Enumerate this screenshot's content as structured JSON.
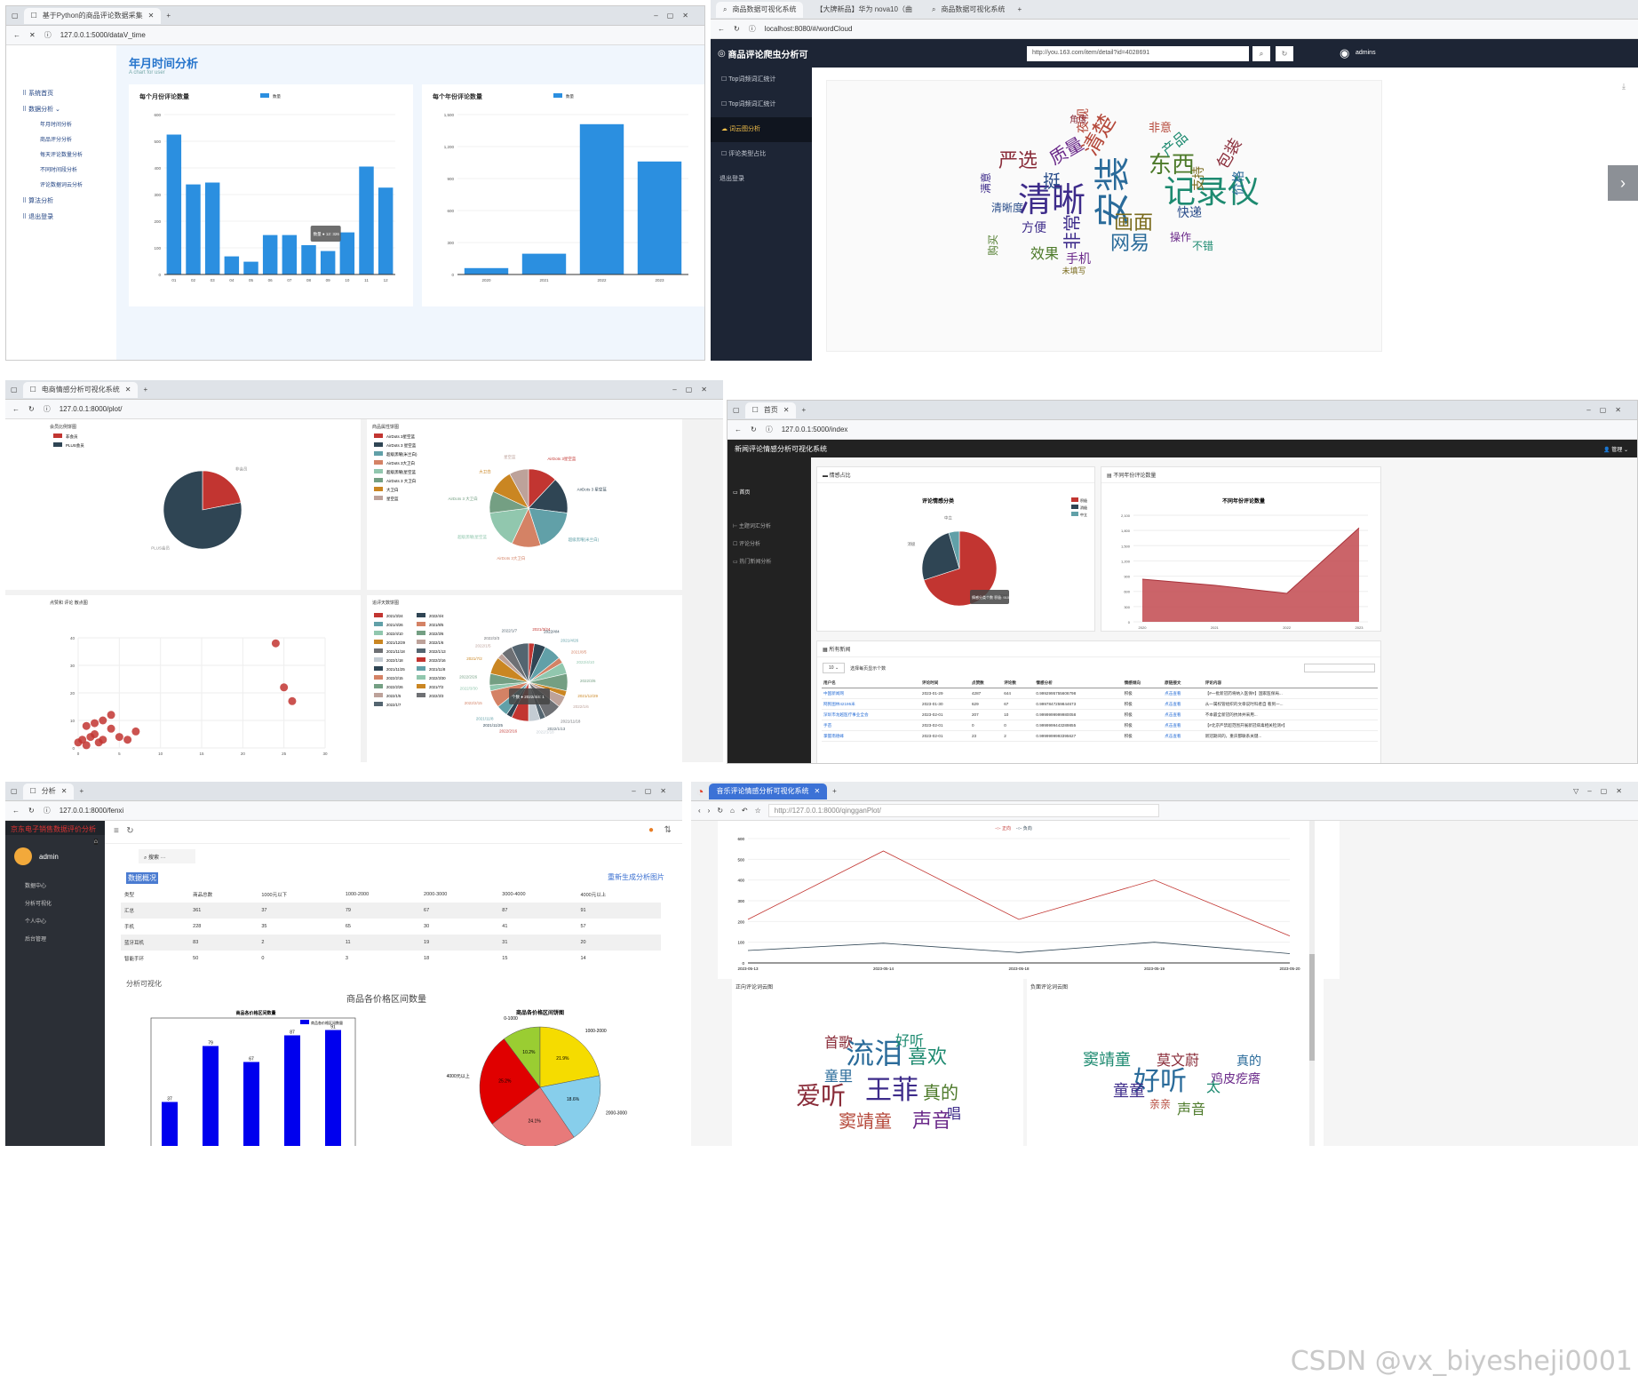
{
  "p1": {
    "tab": "基于Python的商品评论数据采集",
    "url": "127.0.0.1:5000/dataV_time",
    "menu": [
      "系统首页",
      "数据分析",
      "年月时间分析",
      "商品评分分析",
      "每天评论数量分析",
      "不同时间段分析",
      "评论数据词云分析",
      "算法分析",
      "退出登录"
    ],
    "title": "年月时间分析",
    "subtitle": "A chart for user",
    "chart1_title": "每个月份评论数量",
    "chart2_title": "每个年份评论数量",
    "legend": "数量",
    "tooltip": "数量 ● 12: 326",
    "chart_data": [
      {
        "type": "bar",
        "title": "每个月份评论数量",
        "categories": [
          "01",
          "02",
          "03",
          "04",
          "05",
          "06",
          "07",
          "08",
          "09",
          "10",
          "11",
          "12"
        ],
        "values": [
          525,
          338,
          345,
          68,
          48,
          148,
          148,
          110,
          88,
          158,
          405,
          326
        ],
        "ylim": [
          0,
          600
        ],
        "yticks": [
          "0",
          "100",
          "200",
          "300",
          "400",
          "500",
          "600"
        ]
      },
      {
        "type": "bar",
        "title": "每个年份评论数量",
        "categories": [
          "2020",
          "2021",
          "2022",
          "2023"
        ],
        "values": [
          60,
          195,
          1410,
          1060
        ],
        "ylim": [
          0,
          1500
        ],
        "yticks": [
          "0",
          "300",
          "600",
          "900",
          "1,200",
          "1,500"
        ]
      }
    ]
  },
  "p2": {
    "tabs": [
      "商品数据可视化系统",
      "【大牌新品】华为 nova10（曲",
      "商品数据可视化系统"
    ],
    "url": "localhost:8080/#/wordCloud",
    "title": "商品评论爬虫分析可",
    "search_value": "http://you.163.com/item/detail?id=4028691",
    "user": "admins",
    "menu": [
      "Top词频词汇统计",
      "Top词频词汇统计",
      "词云图分析",
      "评论类型占比",
      "退出登录"
    ],
    "words": [
      "清晰",
      "安装",
      "记录仪",
      "严选",
      "东西",
      "质量",
      "清楚",
      "挺",
      "画面",
      "非常",
      "网易",
      "产品",
      "包装",
      "效果",
      "手机",
      "夜视",
      "快递",
      "支持",
      "方便",
      "价格",
      "不错",
      "角度",
      "购买",
      "操作",
      "非意",
      "清晰度",
      "未填写",
      "满意"
    ]
  },
  "p3": {
    "tab": "电商情感分析可视化系统",
    "url": "127.0.0.1:8000/plot/",
    "c1_title": "会员比例饼图",
    "c1_legend": [
      "非会员",
      "PLUS会员"
    ],
    "c2_title": "商品属性饼图",
    "c2_legend": [
      "AirDots 3星空蓝",
      "AirDots 3 星空蓝",
      "超级黑曜(米兰白)",
      "AirDots 3大卫白",
      "超级黑曜(星空蓝",
      "AirDots 3 大卫白",
      "大卫白",
      "星空蓝"
    ],
    "c3_title": "点赞和 评论 散点图",
    "c4_title": "追评天数饼图",
    "c4_legend": [
      "2021/3/24",
      "2022/4/4",
      "2021/4/26",
      "2021/8/5",
      "2022/4/10",
      "2022/3/6",
      "2021/12/29",
      "2022/1/6",
      "2021/11/18",
      "2022/1/13",
      "2022/1/18",
      "2022/2/16",
      "2021/11/25",
      "2021/11/8",
      "2022/2/15",
      "2022/3/30",
      "2022/2/26",
      "2021/7/2",
      "2022/1/5",
      "2022/3/3",
      "2022/1/7"
    ],
    "tooltip": "个数 ● 2022/4/4: 1",
    "chart_data": [
      {
        "type": "pie",
        "title": "会员比例饼图",
        "labels": [
          "非会员",
          "PLUS会员"
        ],
        "values": [
          22,
          78
        ]
      },
      {
        "type": "scatter",
        "title": "点赞和 评论 散点图",
        "xlim": [
          0,
          30
        ],
        "ylim": [
          0,
          40
        ],
        "x": [
          0,
          0.5,
          1,
          1.5,
          2,
          2.5,
          3,
          4,
          5,
          3,
          4,
          2,
          1,
          24,
          25,
          26,
          6,
          7
        ],
        "y": [
          2,
          3,
          1,
          4,
          5,
          2,
          3,
          7,
          4,
          10,
          12,
          9,
          8,
          38,
          22,
          17,
          3,
          6
        ]
      }
    ]
  },
  "p4": {
    "tab": "首页",
    "url": "127.0.0.1:5000/index",
    "title": "新闻评论情感分析可视化系统",
    "user": "管理",
    "menu": [
      "首页",
      "主题词汇分析",
      "评论分析",
      "热门新闻分析"
    ],
    "card1": "情感占比",
    "card2": "不同年份评论数量",
    "pie_title": "评论情感分类",
    "pie_legend": [
      "积极",
      "消极",
      "中立"
    ],
    "pie_tooltip": "情感分类个数 积极: 910",
    "area_title": "不同年份评论数量",
    "table_title": "所有新闻",
    "page_size": "10",
    "page_label": "选择每页显示个数",
    "columns": [
      "用户名",
      "评论时间",
      "点赞数",
      "评论数",
      "情感分析",
      "情感倾向",
      "原链接文",
      "评论内容"
    ],
    "rows": [
      [
        "中国新闻网",
        "2023-01-29",
        "4287",
        "644",
        "0.9992995755606798",
        "积极",
        "点击查看",
        "【#一批新冠药将纳入医保#】国家医保局..."
      ],
      [
        "网民图林42195米",
        "2023-01-30",
        "629",
        "67",
        "0.9997847259844673",
        "积极",
        "点击查看",
        "从一属权管组织的文章说时科者自 看到一..."
      ],
      [
        "深圳市龙越医疗事业全会",
        "2023-02-01",
        "207",
        "10",
        "0.9999999999980058",
        "积极",
        "点击查看",
        "不本最全新冠的抗体并采用..."
      ],
      [
        "手苗",
        "2023-02-01",
        "0",
        "0",
        "0.9999999443289855",
        "积极",
        "点击查看",
        "【#北京严禁超范围开展新冠病毒相关检测#】"
      ],
      [
        "掌握南德峰",
        "2023-02-01",
        "23",
        "2",
        "0.9999999993395627",
        "积极",
        "点击查看",
        "新冠期间的，重庆都联系关键..."
      ]
    ],
    "chart_data": [
      {
        "type": "pie",
        "title": "评论情感分类",
        "labels": [
          "积极",
          "消极",
          "中立"
        ],
        "values": [
          910,
          330,
          60
        ]
      },
      {
        "type": "area",
        "title": "不同年份评论数量",
        "categories": [
          "2020",
          "2021",
          "2022",
          "2023"
        ],
        "values": [
          840,
          720,
          560,
          1850
        ],
        "ylim": [
          0,
          2100
        ],
        "yticks": [
          "0",
          "300",
          "600",
          "900",
          "1,200",
          "1,500",
          "1,800",
          "2,100"
        ]
      }
    ]
  },
  "p5": {
    "tab": "分析",
    "url": "127.0.0.1:8000/fenxi",
    "brand": "京东电子销售数据评价分析",
    "user": "admin",
    "menu": [
      "数据中心",
      "分析可视化",
      "个人中心",
      "后台管理"
    ],
    "search_placeholder": "搜索",
    "section1": "数据概况",
    "regen": "重新生成分析图片",
    "columns": [
      "类型",
      "商品总数",
      "1000元以下",
      "1000-2000",
      "2000-3000",
      "3000-4000",
      "4000元以上"
    ],
    "rows": [
      [
        "汇总",
        "361",
        "37",
        "79",
        "67",
        "87",
        "91"
      ],
      [
        "手机",
        "228",
        "35",
        "65",
        "30",
        "41",
        "57"
      ],
      [
        "蓝牙耳机",
        "83",
        "2",
        "11",
        "19",
        "31",
        "20"
      ],
      [
        "智能手环",
        "50",
        "0",
        "3",
        "18",
        "15",
        "14"
      ]
    ],
    "section2": "分析可视化",
    "main_title": "商品各价格区间数量",
    "bar_title": "商品各价格区间数量",
    "bar_legend": "商品各价格区间数量",
    "pie_title": "商品各价格区间饼图",
    "chart_data": [
      {
        "type": "bar",
        "title": "商品各价格区间数量",
        "categories": [
          "1000元以下",
          "1000-2000",
          "2000-3000",
          "3000-4000",
          "4000元以上"
        ],
        "values": [
          37,
          79,
          67,
          87,
          91
        ]
      },
      {
        "type": "pie",
        "title": "商品各价格区间饼图",
        "labels": [
          "0-1000",
          "1000-2000",
          "2000-3000",
          "3000-4000",
          "4000元以上"
        ],
        "values": [
          10.2,
          21.9,
          18.6,
          24.1,
          25.2
        ],
        "value_labels": [
          "10.2%",
          "21.9%",
          "18.6%",
          "24.1%",
          "25.2%"
        ]
      }
    ]
  },
  "p6": {
    "tab": "音乐评论情感分析可视化系统",
    "url": "http://127.0.0.1:8000/qingganPlot/",
    "legend": [
      "正向",
      "负向"
    ],
    "wc1_title": "正向评论词云图",
    "wc2_title": "负面评论词云图",
    "words1": [
      "流泪",
      "喜欢",
      "爱听",
      "王菲",
      "真的",
      "窦靖童",
      "声音",
      "童里",
      "好听",
      "首歌",
      "唱"
    ],
    "words2": [
      "好听",
      "窦靖童",
      "莫文蔚",
      "童童",
      "声音",
      "亲亲",
      "鸡皮疙瘩",
      "真的",
      "太"
    ],
    "chart_data": {
      "type": "line",
      "x": [
        "2023-05-13",
        "2023-05-14",
        "2023-05-18",
        "2023-05-19",
        "2023-05-20"
      ],
      "series": [
        {
          "name": "正向",
          "values": [
            210,
            540,
            210,
            400,
            130
          ]
        },
        {
          "name": "负向",
          "values": [
            60,
            95,
            50,
            100,
            45
          ]
        }
      ],
      "ylim": [
        0,
        600
      ],
      "yticks": [
        "0",
        "100",
        "200",
        "300",
        "400",
        "500",
        "600"
      ]
    }
  },
  "watermark": "CSDN @vx_biyesheji0001"
}
